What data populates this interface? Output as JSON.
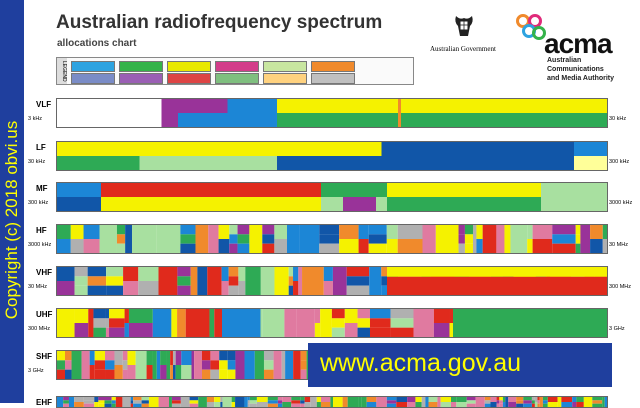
{
  "copyright": "Copyright (c) 2018 obvi.us",
  "header": {
    "title": "Australian radiofrequency spectrum",
    "subtitle": "allocations chart",
    "gov_text": "Australian Government",
    "logo_word": "acma",
    "tagline": [
      "Australian",
      "Communications",
      "and Media Authority"
    ]
  },
  "legend": {
    "heading": "LEGEND",
    "colors": [
      "#2ea3e0",
      "#34b34a",
      "#e8e800",
      "#d33c8a",
      "#c8e6a0",
      "#f08a2c",
      "#7a8cc7",
      "#9a5fb4",
      "#d44",
      "#7fbf7f",
      "#ffd27f",
      "#c0c0c0"
    ]
  },
  "colors": {
    "blue": "#1c86d6",
    "dblue": "#1156a8",
    "green": "#2eaa55",
    "lgreen": "#a8e0a0",
    "yellow": "#f5f200",
    "red": "#e02a1c",
    "purple": "#993399",
    "orange": "#f08a2c",
    "pink": "#e07aa0",
    "grey": "#b0b0b0",
    "white": "#ffffff"
  },
  "bands": [
    {
      "name": "VLF",
      "low": "3 kHz",
      "high": "30 kHz"
    },
    {
      "name": "LF",
      "low": "30 kHz",
      "high": "300 kHz"
    },
    {
      "name": "MF",
      "low": "300 kHz",
      "high": "3000 kHz"
    },
    {
      "name": "HF",
      "low": "3000 kHz",
      "high": "30 MHz"
    },
    {
      "name": "VHF",
      "low": "30 MHz",
      "high": "300 MHz"
    },
    {
      "name": "UHF",
      "low": "300 MHz",
      "high": "3 GHz"
    },
    {
      "name": "SHF",
      "low": "3 GHz",
      "high": ""
    },
    {
      "name": "EHF",
      "low": "",
      "high": ""
    }
  ],
  "url": "www.acma.gov.au"
}
